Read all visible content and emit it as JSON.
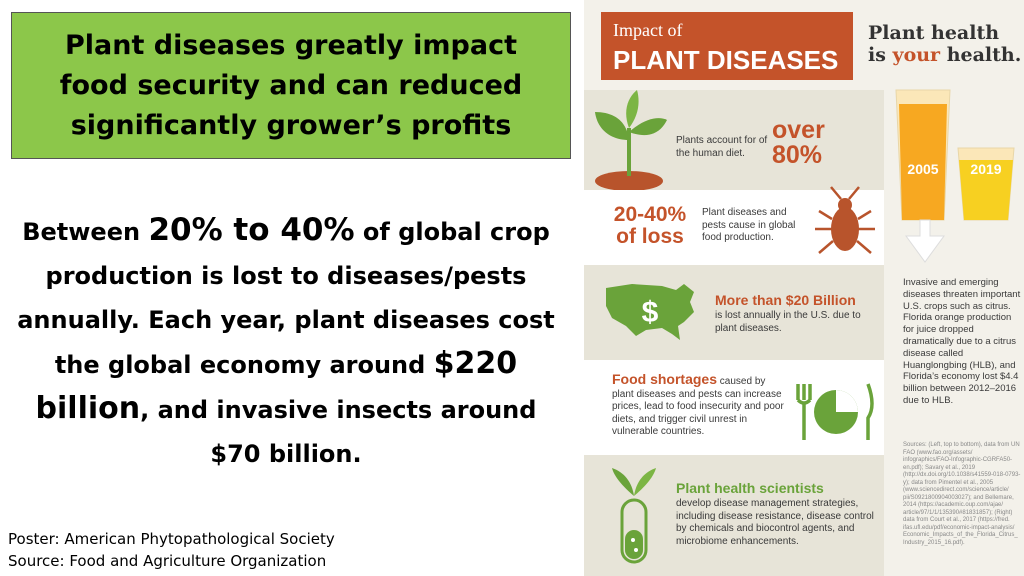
{
  "slide": {
    "title": "Plant diseases greatly impact\nfood security and can reduced\nsignificantly  grower’s profits",
    "body": {
      "p1": "Between ",
      "p1_big": "20% to 40%",
      "p2": " of global crop production is lost to diseases/pests annually. Each year, plant diseases cost the global economy around ",
      "p2_big": "$220 billion",
      "p3": ", and invasive insects around $70 billion."
    },
    "credit_poster": "Poster: American Phytopathological Society",
    "credit_source": "Source: Food and Agriculture Organization"
  },
  "infographic": {
    "header_small": "Impact of",
    "header_large": "PLANT DISEASES",
    "brand_line1": "Plant health",
    "brand_is": "is ",
    "brand_your": "your",
    "brand_health": " health.",
    "diet_text": "Plants account for of the human diet.",
    "diet_stat": "over 80%",
    "loss_stat_1": "20-40%",
    "loss_stat_2": "of loss",
    "loss_text": "Plant diseases and pests cause in global food production.",
    "billion_title": "More than $20 Billion",
    "billion_text": "is lost annually in the U.S. due to plant diseases.",
    "dollar_symbol": "$",
    "food_title": "Food shortages",
    "food_text": "caused by plant diseases and pests can increase prices, lead to food insecurity and poor diets, and trigger civil unrest in vulnerable countries.",
    "scientists_title": "Plant health scientists",
    "scientists_text": "develop disease management strategies, including disease resistance, disease control by chemicals and biocontrol agents, and microbiome enhancements.",
    "year_a": "2005",
    "year_b": "2019",
    "citrus_text": "Invasive and emerging diseases threaten important U.S. crops such as citrus. Florida orange production for juice dropped dramatically due to a citrus disease called Huanglongbing (HLB), and Florida’s economy lost $4.4 billion between 2012–2016 due to HLB.",
    "sources_text": "Sources: (Left, top to bottom), data from UN FAO (www.fao.org/assets/ infographics/FAO-Infographic-CGRFA50-en.pdf); Savary et al., 2019 (http://dx.doi.org/10.1038/s41559-018-0793-y); data from Pimentel et al., 2005 (www.sciencedirect.com/science/article/ pii/S0921800904003027); and Bellemare, 2014 (https://academic.oup.com/ajae/ article/97/1/1/135390#81831857); (Right) data from Court et al., 2017 (https://fred. ifas.ufl.edu/pdf/economic-impact-analysis/ Economic_Impacts_of_the_Florida_Citrus_ Industry_2015_16.pdf).",
    "colors": {
      "accent": "#c4532a",
      "green": "#6aa33a",
      "title_bg": "#8cc74a"
    }
  }
}
